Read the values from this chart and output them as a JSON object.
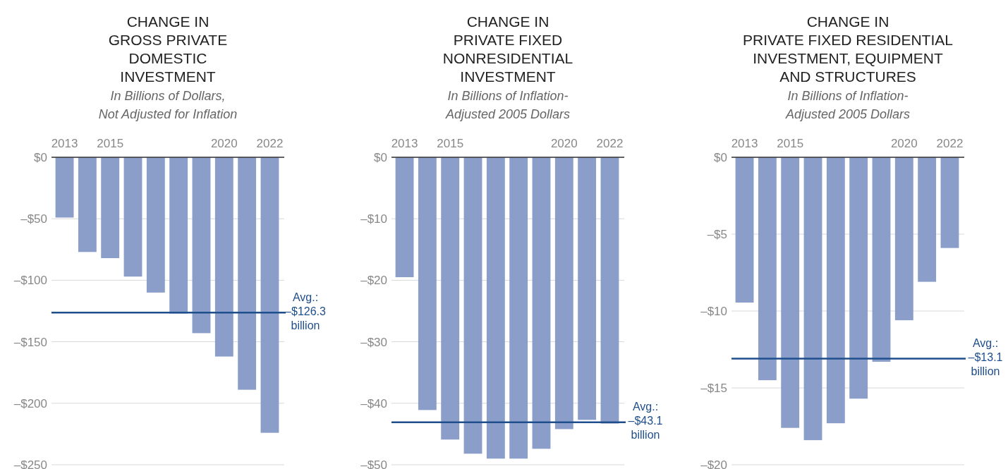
{
  "chart_data": [
    {
      "type": "bar",
      "title": "CHANGE IN\nGROSS PRIVATE\nDOMESTIC\nINVESTMENT",
      "subtitle": "In Billions of Dollars,\nNot Adjusted for Inflation",
      "categories": [
        "2013",
        null,
        "2015",
        null,
        null,
        null,
        null,
        "2020",
        null,
        "2022"
      ],
      "values": [
        -49,
        -77,
        -82,
        -97,
        -110,
        -127,
        -143,
        -162,
        -189,
        -224
      ],
      "color": "#8a9ec9",
      "ylim": [
        -250,
        0
      ],
      "yticks": [
        {
          "value": 0,
          "label": "$0"
        },
        {
          "value": -50,
          "label": "–$50"
        },
        {
          "value": -100,
          "label": "–$100"
        },
        {
          "value": -150,
          "label": "–$150"
        },
        {
          "value": -200,
          "label": "–$200"
        },
        {
          "value": -250,
          "label": "–$250"
        }
      ],
      "grid": "y",
      "ref_lines": [
        {
          "axis": "y",
          "value": -126.3,
          "label": "Avg.:\n–$126.3\nbillion",
          "color": "#1f4e8c"
        }
      ]
    },
    {
      "type": "bar",
      "title": "CHANGE IN\nPRIVATE FIXED\nNONRESIDENTIAL\nINVESTMENT",
      "subtitle": "In Billions of Inflation-\nAdjusted 2005 Dollars",
      "categories": [
        "2013",
        null,
        "2015",
        null,
        null,
        null,
        null,
        "2020",
        null,
        "2022"
      ],
      "values": [
        -19.5,
        -41.1,
        -45.9,
        -48.2,
        -49.0,
        -49.0,
        -47.4,
        -44.2,
        -42.7,
        -43.3
      ],
      "color": "#8a9ec9",
      "ylim": [
        -50,
        0
      ],
      "yticks": [
        {
          "value": 0,
          "label": "$0"
        },
        {
          "value": -10,
          "label": "–$10"
        },
        {
          "value": -20,
          "label": "–$20"
        },
        {
          "value": -30,
          "label": "–$30"
        },
        {
          "value": -40,
          "label": "–$40"
        },
        {
          "value": -50,
          "label": "–$50"
        }
      ],
      "grid": "y",
      "ref_lines": [
        {
          "axis": "y",
          "value": -43.1,
          "label": "Avg.:\n–$43.1\nbillion",
          "color": "#1f4e8c"
        }
      ]
    },
    {
      "type": "bar",
      "title": "CHANGE IN\nPRIVATE FIXED RESIDENTIAL\nINVESTMENT, EQUIPMENT\nAND STRUCTURES",
      "subtitle": "In Billions of Inflation-\nAdjusted 2005 Dollars",
      "categories": [
        "2013",
        null,
        "2015",
        null,
        null,
        null,
        null,
        "2020",
        null,
        "2022"
      ],
      "values": [
        -9.45,
        -14.5,
        -17.6,
        -18.4,
        -17.3,
        -15.7,
        -13.3,
        -10.6,
        -8.1,
        -5.9
      ],
      "color": "#8a9ec9",
      "ylim": [
        -20,
        0
      ],
      "yticks": [
        {
          "value": 0,
          "label": "$0"
        },
        {
          "value": -5,
          "label": "–$5"
        },
        {
          "value": -10,
          "label": "–$10"
        },
        {
          "value": -15,
          "label": "–$15"
        },
        {
          "value": -20,
          "label": "–$20"
        }
      ],
      "grid": "y",
      "ref_lines": [
        {
          "axis": "y",
          "value": -13.1,
          "label": "Avg.:\n–$13.1\nbillion",
          "color": "#1f4e8c"
        }
      ]
    }
  ]
}
